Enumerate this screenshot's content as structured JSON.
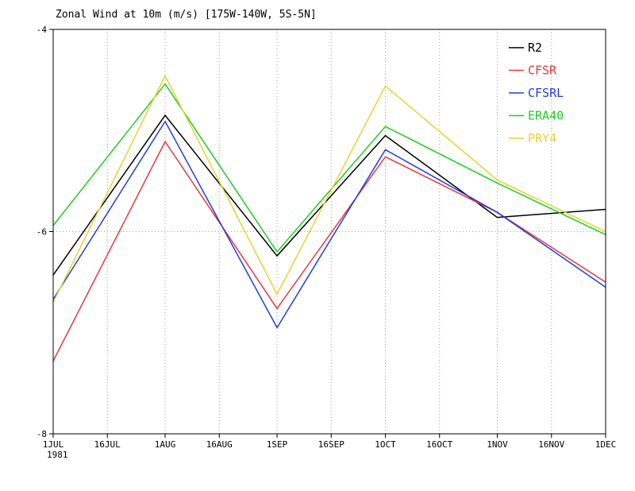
{
  "chart_data": {
    "type": "line",
    "title": "Zonal Wind at 10m (m/s) [175W-140W, 5S-5N]",
    "xlabel": "",
    "ylabel": "",
    "x": [
      "1JUL",
      "1AUG",
      "1SEP",
      "1OCT",
      "1NOV",
      "1DEC"
    ],
    "x_days": [
      0,
      31,
      62,
      92,
      123,
      153
    ],
    "xticks": [
      {
        "label": "1JUL",
        "day": 0
      },
      {
        "label": "16JUL",
        "day": 15
      },
      {
        "label": "1AUG",
        "day": 31
      },
      {
        "label": "16AUG",
        "day": 46
      },
      {
        "label": "1SEP",
        "day": 62
      },
      {
        "label": "16SEP",
        "day": 77
      },
      {
        "label": "1OCT",
        "day": 92
      },
      {
        "label": "16OCT",
        "day": 107
      },
      {
        "label": "1NOV",
        "day": 123
      },
      {
        "label": "16NOV",
        "day": 138
      },
      {
        "label": "1DEC",
        "day": 153
      }
    ],
    "year_label": "1981",
    "ylim": [
      -8,
      -4
    ],
    "yticks": [
      -4,
      -6,
      -8
    ],
    "grid": true,
    "legend_position": "top-right",
    "series": [
      {
        "name": "R2",
        "color": "#000000",
        "values": [
          -6.43,
          -4.85,
          -6.24,
          -5.05,
          -5.86,
          -5.78
        ]
      },
      {
        "name": "CFSR",
        "color": "#e8383b",
        "values": [
          -7.28,
          -5.11,
          -6.76,
          -5.26,
          -5.81,
          -6.5
        ]
      },
      {
        "name": "CFSRL",
        "color": "#1f3de0",
        "values": [
          -6.67,
          -4.91,
          -6.95,
          -5.19,
          -5.81,
          -6.55
        ]
      },
      {
        "name": "ERA40",
        "color": "#1dce1d",
        "values": [
          -5.94,
          -4.54,
          -6.2,
          -4.96,
          -5.52,
          -6.03
        ]
      },
      {
        "name": "PRY4",
        "color": "#e6d232",
        "values": [
          -6.7,
          -4.46,
          -6.62,
          -4.56,
          -5.49,
          -6.0
        ]
      }
    ]
  }
}
